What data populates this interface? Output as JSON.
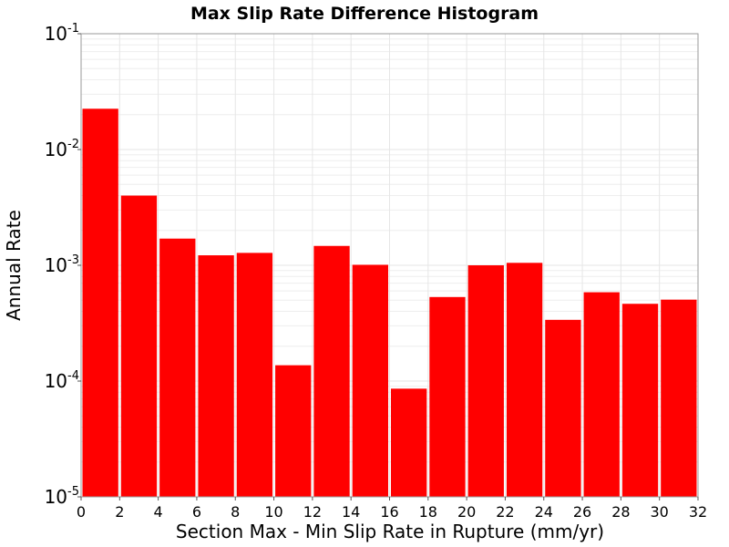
{
  "chart_data": {
    "type": "bar",
    "title": "Max Slip Rate Difference Histogram",
    "xlabel": "Section Max - Min Slip Rate in Rupture (mm/yr)",
    "ylabel": "Annual Rate",
    "xlim": [
      0,
      32
    ],
    "ylim": [
      1e-05,
      0.1
    ],
    "yscale": "log",
    "grid": true,
    "bar_color": "#ff0000",
    "bin_width": 2,
    "x_ticks": [
      "0",
      "2",
      "4",
      "6",
      "8",
      "10",
      "12",
      "14",
      "16",
      "18",
      "20",
      "22",
      "24",
      "26",
      "28",
      "30",
      "32"
    ],
    "y_ticks": [
      {
        "base": "10",
        "exp": "-1"
      },
      {
        "base": "10",
        "exp": "-2"
      },
      {
        "base": "10",
        "exp": "-3"
      },
      {
        "base": "10",
        "exp": "-4"
      },
      {
        "base": "10",
        "exp": "-5"
      }
    ],
    "bins": [
      {
        "x0": 0,
        "x1": 2,
        "value": 0.0225
      },
      {
        "x0": 2,
        "x1": 4,
        "value": 0.004
      },
      {
        "x0": 4,
        "x1": 6,
        "value": 0.0017
      },
      {
        "x0": 6,
        "x1": 8,
        "value": 0.00122
      },
      {
        "x0": 8,
        "x1": 10,
        "value": 0.00128
      },
      {
        "x0": 10,
        "x1": 12,
        "value": 0.000137
      },
      {
        "x0": 12,
        "x1": 14,
        "value": 0.00147
      },
      {
        "x0": 14,
        "x1": 16,
        "value": 0.00101
      },
      {
        "x0": 16,
        "x1": 18,
        "value": 8.6e-05
      },
      {
        "x0": 18,
        "x1": 20,
        "value": 0.000532
      },
      {
        "x0": 20,
        "x1": 22,
        "value": 0.001
      },
      {
        "x0": 22,
        "x1": 24,
        "value": 0.00105
      },
      {
        "x0": 24,
        "x1": 26,
        "value": 0.000338
      },
      {
        "x0": 26,
        "x1": 28,
        "value": 0.000585
      },
      {
        "x0": 28,
        "x1": 30,
        "value": 0.000465
      },
      {
        "x0": 30,
        "x1": 32,
        "value": 0.000505
      }
    ]
  }
}
